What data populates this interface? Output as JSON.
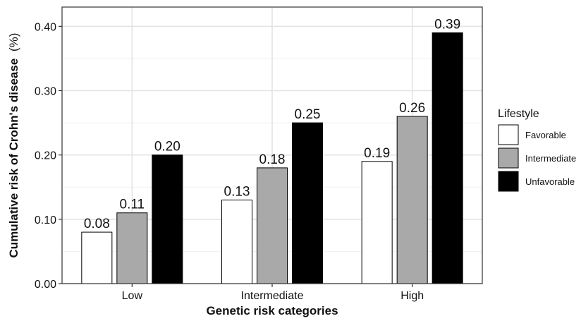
{
  "chart_data": {
    "type": "bar",
    "xlabel": "Genetic risk categories",
    "ylabel": "Cumulative risk of Crohn's disease",
    "ylabel_unit": "(%)",
    "categories": [
      "Low",
      "Intermediate",
      "High"
    ],
    "legend_title": "Lifestyle",
    "legend_position": "right",
    "grid": true,
    "ylim": [
      0,
      0.43
    ],
    "yticks": [
      "0.00",
      "0.10",
      "0.20",
      "0.30",
      "0.40"
    ],
    "series": [
      {
        "name": "Favorable",
        "color": "#ffffff",
        "values": [
          0.08,
          0.13,
          0.19
        ],
        "labels": [
          "0.08",
          "0.13",
          "0.19"
        ]
      },
      {
        "name": "Intermediate",
        "color": "#a9a9a9",
        "values": [
          0.11,
          0.18,
          0.26
        ],
        "labels": [
          "0.11",
          "0.18",
          "0.26"
        ]
      },
      {
        "name": "Unfavorable",
        "color": "#000000",
        "values": [
          0.2,
          0.25,
          0.39
        ],
        "labels": [
          "0.20",
          "0.25",
          "0.39"
        ]
      }
    ]
  }
}
